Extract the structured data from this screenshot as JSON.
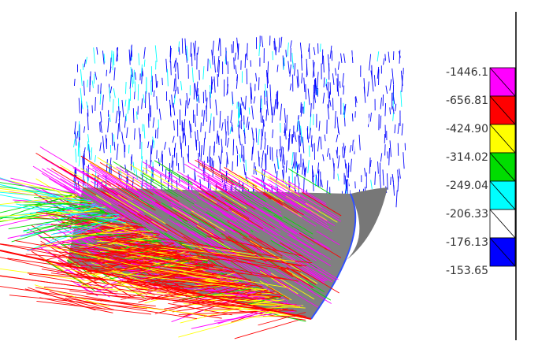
{
  "legend": {
    "labels": [
      "-1446.1",
      "-656.81",
      "-424.90",
      "-314.02",
      "-249.04",
      "-206.33",
      "-176.13",
      "-153.65"
    ],
    "colors": [
      "#ff00ff",
      "#ff0000",
      "#ffff00",
      "#00dd00",
      "#00ffff",
      "#ffffff",
      "#0000ff"
    ]
  }
}
